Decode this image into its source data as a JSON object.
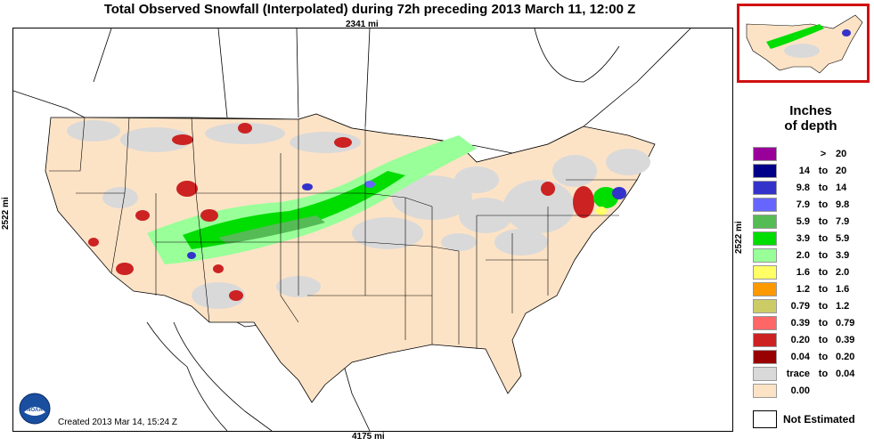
{
  "title": "Total Observed Snowfall (Interpolated) during 72h preceding 2013 March 11, 12:00 Z",
  "dimensions": {
    "top": "2341 mi",
    "bottom": "4175 mi",
    "left": "2522 mi",
    "right": "2522 mi"
  },
  "created": "Created 2013 Mar 14, 15:24 Z",
  "logo_text": "NOAA",
  "legend": {
    "title_line1": "Inches",
    "title_line2": "of depth",
    "not_estimated": "Not Estimated",
    "not_estimated_color": "#ffffff",
    "classes": [
      {
        "lo": "",
        "sep": ">",
        "hi": "20",
        "color": "#990099"
      },
      {
        "lo": "14",
        "sep": "to",
        "hi": "20",
        "color": "#000088"
      },
      {
        "lo": "9.8",
        "sep": "to",
        "hi": "14",
        "color": "#3333cc"
      },
      {
        "lo": "7.9",
        "sep": "to",
        "hi": "9.8",
        "color": "#6666ff"
      },
      {
        "lo": "5.9",
        "sep": "to",
        "hi": "7.9",
        "color": "#55bb55"
      },
      {
        "lo": "3.9",
        "sep": "to",
        "hi": "5.9",
        "color": "#00dd00"
      },
      {
        "lo": "2.0",
        "sep": "to",
        "hi": "3.9",
        "color": "#99ff99"
      },
      {
        "lo": "1.6",
        "sep": "to",
        "hi": "2.0",
        "color": "#ffff66"
      },
      {
        "lo": "1.2",
        "sep": "to",
        "hi": "1.6",
        "color": "#ff9900"
      },
      {
        "lo": "0.79",
        "sep": "to",
        "hi": "1.2",
        "color": "#cccc66"
      },
      {
        "lo": "0.39",
        "sep": "to",
        "hi": "0.79",
        "color": "#ff6666"
      },
      {
        "lo": "0.20",
        "sep": "to",
        "hi": "0.39",
        "color": "#cc2222"
      },
      {
        "lo": "0.04",
        "sep": "to",
        "hi": "0.20",
        "color": "#990000"
      },
      {
        "lo": "trace",
        "sep": "to",
        "hi": "0.04",
        "color": "#d9d9d9"
      },
      {
        "lo": "0.00",
        "sep": "",
        "hi": "",
        "color": "#fde3c6"
      }
    ]
  }
}
